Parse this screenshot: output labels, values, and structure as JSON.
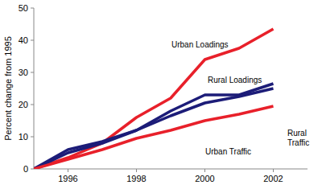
{
  "chart_data": {
    "type": "line",
    "y_label": "Percent change from 1995",
    "x": [
      1995,
      1996,
      1997,
      1998,
      1999,
      2000,
      2001,
      2002
    ],
    "xlim": [
      1995,
      2003
    ],
    "xticks": [
      1996,
      1998,
      2000,
      2002
    ],
    "ylim": [
      0,
      50
    ],
    "yticks": [
      0,
      10,
      20,
      30,
      40,
      50
    ],
    "grid": false,
    "series": [
      {
        "name": "Urban Loadings",
        "color": "#e8202a",
        "values": [
          0,
          3.5,
          8,
          16,
          22,
          34,
          37.5,
          43.5
        ]
      },
      {
        "name": "Rural Loadings",
        "color": "#1c1c78",
        "values": [
          0,
          5,
          8,
          12,
          18,
          23,
          23,
          26.5
        ]
      },
      {
        "name": "Rural Traffic",
        "color": "#1c1c78",
        "values": [
          0,
          6,
          8.5,
          12,
          16.5,
          20.5,
          22.5,
          25
        ]
      },
      {
        "name": "Urban Traffic",
        "color": "#e8202a",
        "values": [
          0,
          3,
          6,
          9.5,
          12,
          15,
          17,
          19.5
        ]
      }
    ]
  }
}
